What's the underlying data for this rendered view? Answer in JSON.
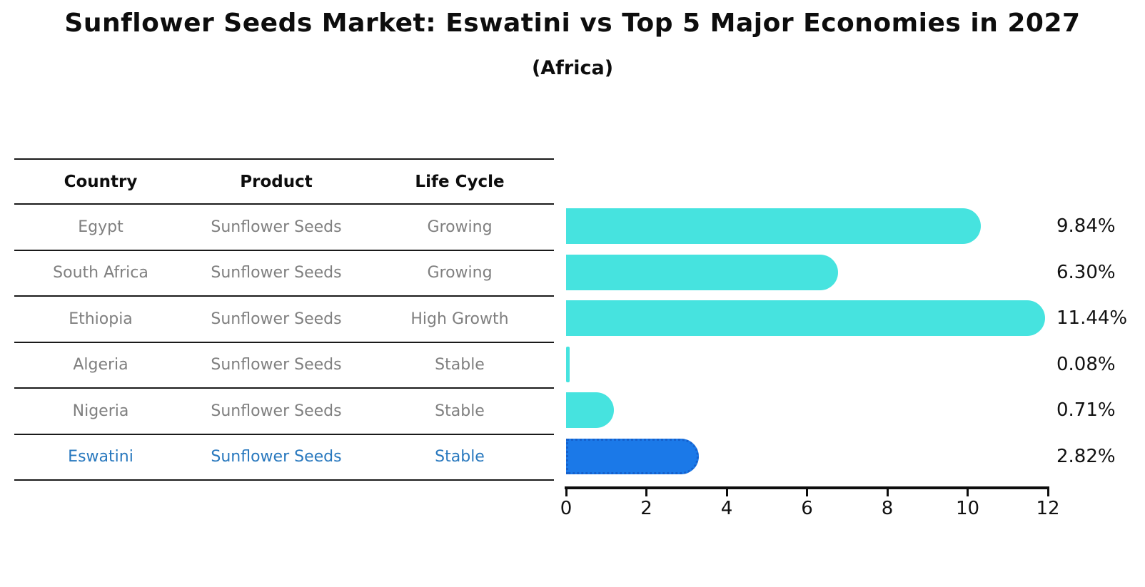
{
  "title": "Sunflower Seeds Market: Eswatini vs Top 5 Major Economies in 2027",
  "subtitle": "(Africa)",
  "table": {
    "columns": [
      "Country",
      "Product",
      "Life Cycle"
    ]
  },
  "rows": [
    {
      "country": "Egypt",
      "product": "Sunflower Seeds",
      "life_cycle": "Growing",
      "label": "9.84%",
      "highlight": false
    },
    {
      "country": "South Africa",
      "product": "Sunflower Seeds",
      "life_cycle": "Growing",
      "label": "6.30%",
      "highlight": false
    },
    {
      "country": "Ethiopia",
      "product": "Sunflower Seeds",
      "life_cycle": "High Growth",
      "label": "11.44%",
      "highlight": false
    },
    {
      "country": "Algeria",
      "product": "Sunflower Seeds",
      "life_cycle": "Stable",
      "label": "0.08%",
      "highlight": false
    },
    {
      "country": "Nigeria",
      "product": "Sunflower Seeds",
      "life_cycle": "Stable",
      "label": "0.71%",
      "highlight": false
    },
    {
      "country": "Eswatini",
      "product": "Sunflower Seeds",
      "life_cycle": "Stable",
      "label": "2.82%",
      "highlight": true
    }
  ],
  "chart_data": {
    "type": "bar",
    "orientation": "horizontal",
    "title": "Sunflower Seeds Market: Eswatini vs Top 5 Major Economies in 2027 (Africa)",
    "categories": [
      "Egypt",
      "South Africa",
      "Ethiopia",
      "Algeria",
      "Nigeria",
      "Eswatini"
    ],
    "values": [
      9.84,
      6.3,
      11.44,
      0.08,
      0.71,
      2.82
    ],
    "value_labels": [
      "9.84%",
      "6.30%",
      "11.44%",
      "0.08%",
      "0.71%",
      "2.82%"
    ],
    "xlabel": "",
    "ylabel": "",
    "xlim": [
      0,
      12
    ],
    "xticks": [
      0,
      2,
      4,
      6,
      8,
      10,
      12
    ],
    "grid": false,
    "legend": false,
    "bar_color": "#46e3df",
    "highlight_index": 5,
    "highlight_color": "#1b79e8",
    "highlight_border": "#1560cc"
  }
}
